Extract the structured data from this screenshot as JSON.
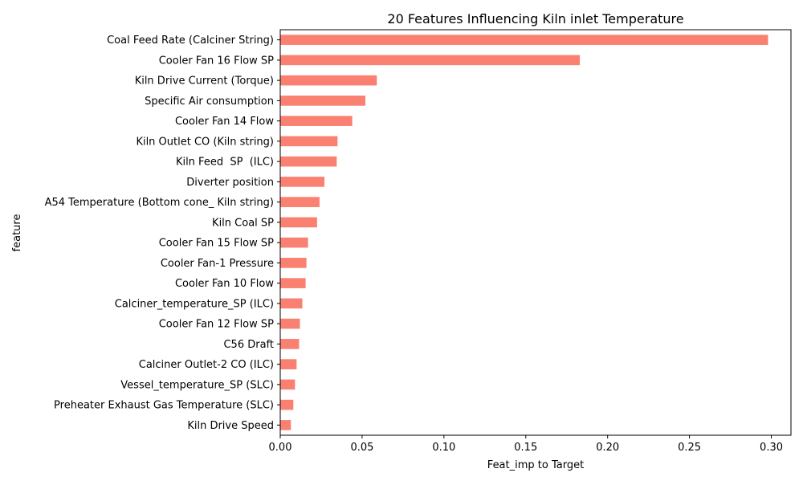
{
  "chart_data": {
    "type": "bar",
    "orientation": "horizontal",
    "title": "20 Features Influencing Kiln inlet Temperature",
    "xlabel": "Feat_imp to Target",
    "ylabel": "feature",
    "xlim": [
      0,
      0.312
    ],
    "xticks": [
      0.0,
      0.05,
      0.1,
      0.15,
      0.2,
      0.25,
      0.3
    ],
    "xtick_labels": [
      "0.00",
      "0.05",
      "0.10",
      "0.15",
      "0.20",
      "0.25",
      "0.30"
    ],
    "grid": false,
    "bar_color": "#fa8072",
    "categories": [
      "Coal Feed Rate (Calciner String)",
      "Cooler Fan 16 Flow SP",
      "Kiln Drive Current (Torque)",
      "Specific Air consumption",
      "Cooler Fan 14 Flow",
      "Kiln Outlet CO (Kiln string)",
      "Kiln Feed  SP  (ILC)",
      "Diverter position",
      "A54 Temperature (Bottom cone_ Kiln string)",
      "Kiln Coal SP",
      "Cooler Fan 15 Flow SP",
      "Cooler Fan-1 Pressure",
      "Cooler Fan 10 Flow",
      "Calciner_temperature_SP (ILC)",
      "Cooler Fan 12 Flow SP",
      "C56 Draft",
      "Calciner Outlet-2 CO (ILC)",
      "Vessel_temperature_SP (SLC)",
      "Preheater Exhaust Gas Temperature (SLC)",
      "Kiln Drive Speed"
    ],
    "values": [
      0.298,
      0.183,
      0.059,
      0.052,
      0.044,
      0.035,
      0.0345,
      0.027,
      0.024,
      0.0225,
      0.017,
      0.016,
      0.0155,
      0.0135,
      0.012,
      0.0115,
      0.01,
      0.009,
      0.008,
      0.0065
    ]
  }
}
